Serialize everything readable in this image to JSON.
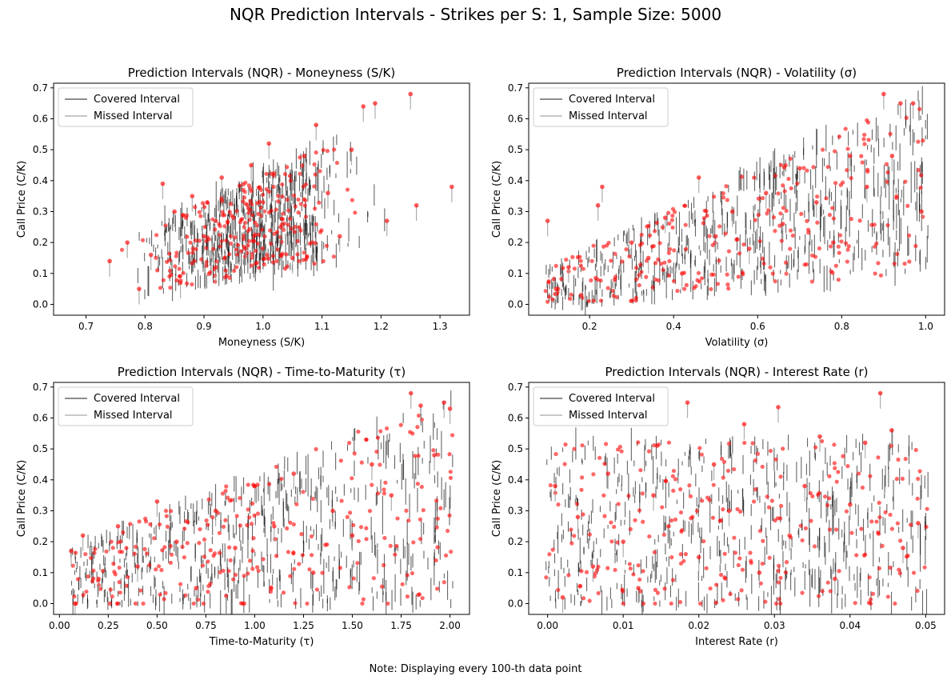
{
  "title": "NQR Prediction Intervals - Strikes per S: 1, Sample Size: 5000",
  "note": "Note: Displaying every 100-th data point",
  "legend": {
    "covered": "Covered Interval",
    "missed": "Missed Interval"
  },
  "colors": {
    "covered": "#000000",
    "missed": "#999999",
    "points": "#ff0000"
  },
  "chart_data": [
    {
      "type": "scatter",
      "title": "Prediction Intervals (NQR) - Moneyness (S/K)",
      "xlabel": "Moneyness (S/K)",
      "ylabel": "Call Price (C/K)",
      "xlim": [
        0.645,
        1.35
      ],
      "ylim": [
        -0.035,
        0.715
      ],
      "xticks": [
        0.7,
        0.8,
        0.9,
        1.0,
        1.1,
        1.2,
        1.3
      ],
      "xtick_labels": [
        "0.7",
        "0.8",
        "0.9",
        "1.0",
        "1.1",
        "1.2",
        "1.3"
      ],
      "yticks": [
        0.0,
        0.1,
        0.2,
        0.3,
        0.4,
        0.5,
        0.6,
        0.7
      ],
      "ytick_labels": [
        "0.0",
        "0.1",
        "0.2",
        "0.3",
        "0.4",
        "0.5",
        "0.6",
        "0.7"
      ],
      "legend_position": "upper-left",
      "series": [
        {
          "name": "Missed Interval",
          "points": [
            {
              "x": 0.74,
              "y": 0.14
            },
            {
              "x": 0.77,
              "y": 0.2
            },
            {
              "x": 0.79,
              "y": 0.05
            },
            {
              "x": 0.81,
              "y": 0.16
            },
            {
              "x": 0.83,
              "y": 0.39
            },
            {
              "x": 0.85,
              "y": 0.3
            },
            {
              "x": 0.86,
              "y": 0.07
            },
            {
              "x": 0.88,
              "y": 0.35
            },
            {
              "x": 0.9,
              "y": 0.22
            },
            {
              "x": 0.92,
              "y": 0.12
            },
            {
              "x": 0.93,
              "y": 0.41
            },
            {
              "x": 0.95,
              "y": 0.28
            },
            {
              "x": 0.97,
              "y": 0.18
            },
            {
              "x": 0.98,
              "y": 0.45
            },
            {
              "x": 1.0,
              "y": 0.33
            },
            {
              "x": 1.01,
              "y": 0.52
            },
            {
              "x": 1.03,
              "y": 0.25
            },
            {
              "x": 1.05,
              "y": 0.15
            },
            {
              "x": 1.07,
              "y": 0.48
            },
            {
              "x": 1.09,
              "y": 0.58
            },
            {
              "x": 1.11,
              "y": 0.36
            },
            {
              "x": 1.13,
              "y": 0.22
            },
            {
              "x": 1.15,
              "y": 0.5
            },
            {
              "x": 1.17,
              "y": 0.64
            },
            {
              "x": 1.19,
              "y": 0.65
            },
            {
              "x": 1.21,
              "y": 0.27
            },
            {
              "x": 1.25,
              "y": 0.68
            },
            {
              "x": 1.26,
              "y": 0.32
            },
            {
              "x": 1.32,
              "y": 0.38
            }
          ]
        }
      ]
    },
    {
      "type": "scatter",
      "title": "Prediction Intervals (NQR) - Volatility (σ)",
      "xlabel": "Volatility (σ)",
      "ylabel": "Call Price (C/K)",
      "xlim": [
        0.055,
        1.045
      ],
      "ylim": [
        -0.035,
        0.715
      ],
      "xticks": [
        0.2,
        0.4,
        0.6,
        0.8,
        1.0
      ],
      "xtick_labels": [
        "0.2",
        "0.4",
        "0.6",
        "0.8",
        "1.0"
      ],
      "yticks": [
        0.0,
        0.1,
        0.2,
        0.3,
        0.4,
        0.5,
        0.6,
        0.7
      ],
      "ytick_labels": [
        "0.0",
        "0.1",
        "0.2",
        "0.3",
        "0.4",
        "0.5",
        "0.6",
        "0.7"
      ],
      "legend_position": "upper-left",
      "series": [
        {
          "name": "Missed Interval",
          "points": [
            {
              "x": 0.1,
              "y": 0.27
            },
            {
              "x": 0.12,
              "y": 0.05
            },
            {
              "x": 0.15,
              "y": 0.12
            },
            {
              "x": 0.18,
              "y": 0.03
            },
            {
              "x": 0.22,
              "y": 0.32
            },
            {
              "x": 0.23,
              "y": 0.38
            },
            {
              "x": 0.26,
              "y": 0.08
            },
            {
              "x": 0.3,
              "y": 0.2
            },
            {
              "x": 0.34,
              "y": 0.15
            },
            {
              "x": 0.38,
              "y": 0.28
            },
            {
              "x": 0.42,
              "y": 0.1
            },
            {
              "x": 0.46,
              "y": 0.41
            },
            {
              "x": 0.5,
              "y": 0.22
            },
            {
              "x": 0.54,
              "y": 0.3
            },
            {
              "x": 0.58,
              "y": 0.18
            },
            {
              "x": 0.62,
              "y": 0.36
            },
            {
              "x": 0.66,
              "y": 0.26
            },
            {
              "x": 0.7,
              "y": 0.44
            },
            {
              "x": 0.74,
              "y": 0.33
            },
            {
              "x": 0.78,
              "y": 0.2
            },
            {
              "x": 0.82,
              "y": 0.48
            },
            {
              "x": 0.86,
              "y": 0.38
            },
            {
              "x": 0.9,
              "y": 0.68
            },
            {
              "x": 0.92,
              "y": 0.48
            },
            {
              "x": 0.94,
              "y": 0.65
            },
            {
              "x": 0.97,
              "y": 0.65
            },
            {
              "x": 0.99,
              "y": 0.3
            }
          ]
        }
      ]
    },
    {
      "type": "scatter",
      "title": "Prediction Intervals (NQR) - Time-to-Maturity (τ)",
      "xlabel": "Time-to-Maturity (τ)",
      "ylabel": "Call Price (C/K)",
      "xlim": [
        -0.03,
        2.1
      ],
      "ylim": [
        -0.035,
        0.715
      ],
      "xticks": [
        0.0,
        0.25,
        0.5,
        0.75,
        1.0,
        1.25,
        1.5,
        1.75,
        2.0
      ],
      "xtick_labels": [
        "0.00",
        "0.25",
        "0.50",
        "0.75",
        "1.00",
        "1.25",
        "1.50",
        "1.75",
        "2.00"
      ],
      "yticks": [
        0.0,
        0.1,
        0.2,
        0.3,
        0.4,
        0.5,
        0.6,
        0.7
      ],
      "ytick_labels": [
        "0.0",
        "0.1",
        "0.2",
        "0.3",
        "0.4",
        "0.5",
        "0.6",
        "0.7"
      ],
      "legend_position": "upper-left",
      "series": [
        {
          "name": "Missed Interval",
          "points": [
            {
              "x": 0.06,
              "y": 0.17
            },
            {
              "x": 0.08,
              "y": 0.0
            },
            {
              "x": 0.12,
              "y": 0.22
            },
            {
              "x": 0.2,
              "y": 0.08
            },
            {
              "x": 0.3,
              "y": 0.25
            },
            {
              "x": 0.4,
              "y": 0.12
            },
            {
              "x": 0.5,
              "y": 0.33
            },
            {
              "x": 0.6,
              "y": 0.2
            },
            {
              "x": 0.7,
              "y": 0.05
            },
            {
              "x": 0.8,
              "y": 0.3
            },
            {
              "x": 0.9,
              "y": 0.18
            },
            {
              "x": 1.0,
              "y": 0.38
            },
            {
              "x": 1.1,
              "y": 0.25
            },
            {
              "x": 1.2,
              "y": 0.42
            },
            {
              "x": 1.3,
              "y": 0.1
            },
            {
              "x": 1.4,
              "y": 0.3
            },
            {
              "x": 1.5,
              "y": 0.22
            },
            {
              "x": 1.6,
              "y": 0.45
            },
            {
              "x": 1.7,
              "y": 0.35
            },
            {
              "x": 1.8,
              "y": 0.68
            },
            {
              "x": 1.85,
              "y": 0.64
            },
            {
              "x": 1.92,
              "y": 0.48
            },
            {
              "x": 1.97,
              "y": 0.65
            },
            {
              "x": 2.0,
              "y": 0.63
            }
          ]
        }
      ]
    },
    {
      "type": "scatter",
      "title": "Prediction Intervals (NQR) - Interest Rate (r)",
      "xlabel": "Interest Rate (r)",
      "ylabel": "Call Price (C/K)",
      "xlim": [
        -0.0025,
        0.0525
      ],
      "ylim": [
        -0.035,
        0.715
      ],
      "xticks": [
        0.0,
        0.01,
        0.02,
        0.03,
        0.04,
        0.05
      ],
      "xtick_labels": [
        "0.00",
        "0.01",
        "0.02",
        "0.03",
        "0.04",
        "0.05"
      ],
      "yticks": [
        0.0,
        0.1,
        0.2,
        0.3,
        0.4,
        0.5,
        0.6,
        0.7
      ],
      "ytick_labels": [
        "0.0",
        "0.1",
        "0.2",
        "0.3",
        "0.4",
        "0.5",
        "0.6",
        "0.7"
      ],
      "legend_position": "upper-left",
      "series": [
        {
          "name": "Missed Interval",
          "points": [
            {
              "x": 0.001,
              "y": 0.38
            },
            {
              "x": 0.002,
              "y": 0.02
            },
            {
              "x": 0.004,
              "y": 0.28
            },
            {
              "x": 0.006,
              "y": 0.12
            },
            {
              "x": 0.008,
              "y": 0.42
            },
            {
              "x": 0.01,
              "y": 0.2
            },
            {
              "x": 0.012,
              "y": 0.05
            },
            {
              "x": 0.014,
              "y": 0.35
            },
            {
              "x": 0.016,
              "y": 0.25
            },
            {
              "x": 0.0185,
              "y": 0.65
            },
            {
              "x": 0.02,
              "y": 0.15
            },
            {
              "x": 0.022,
              "y": 0.45
            },
            {
              "x": 0.024,
              "y": 0.3
            },
            {
              "x": 0.026,
              "y": 0.58
            },
            {
              "x": 0.028,
              "y": 0.1
            },
            {
              "x": 0.0305,
              "y": 0.635
            },
            {
              "x": 0.032,
              "y": 0.22
            },
            {
              "x": 0.034,
              "y": 0.38
            },
            {
              "x": 0.036,
              "y": 0.54
            },
            {
              "x": 0.038,
              "y": 0.08
            },
            {
              "x": 0.04,
              "y": 0.32
            },
            {
              "x": 0.042,
              "y": 0.52
            },
            {
              "x": 0.044,
              "y": 0.68
            },
            {
              "x": 0.0455,
              "y": 0.56
            },
            {
              "x": 0.047,
              "y": 0.18
            },
            {
              "x": 0.049,
              "y": 0.26
            }
          ]
        }
      ]
    }
  ]
}
